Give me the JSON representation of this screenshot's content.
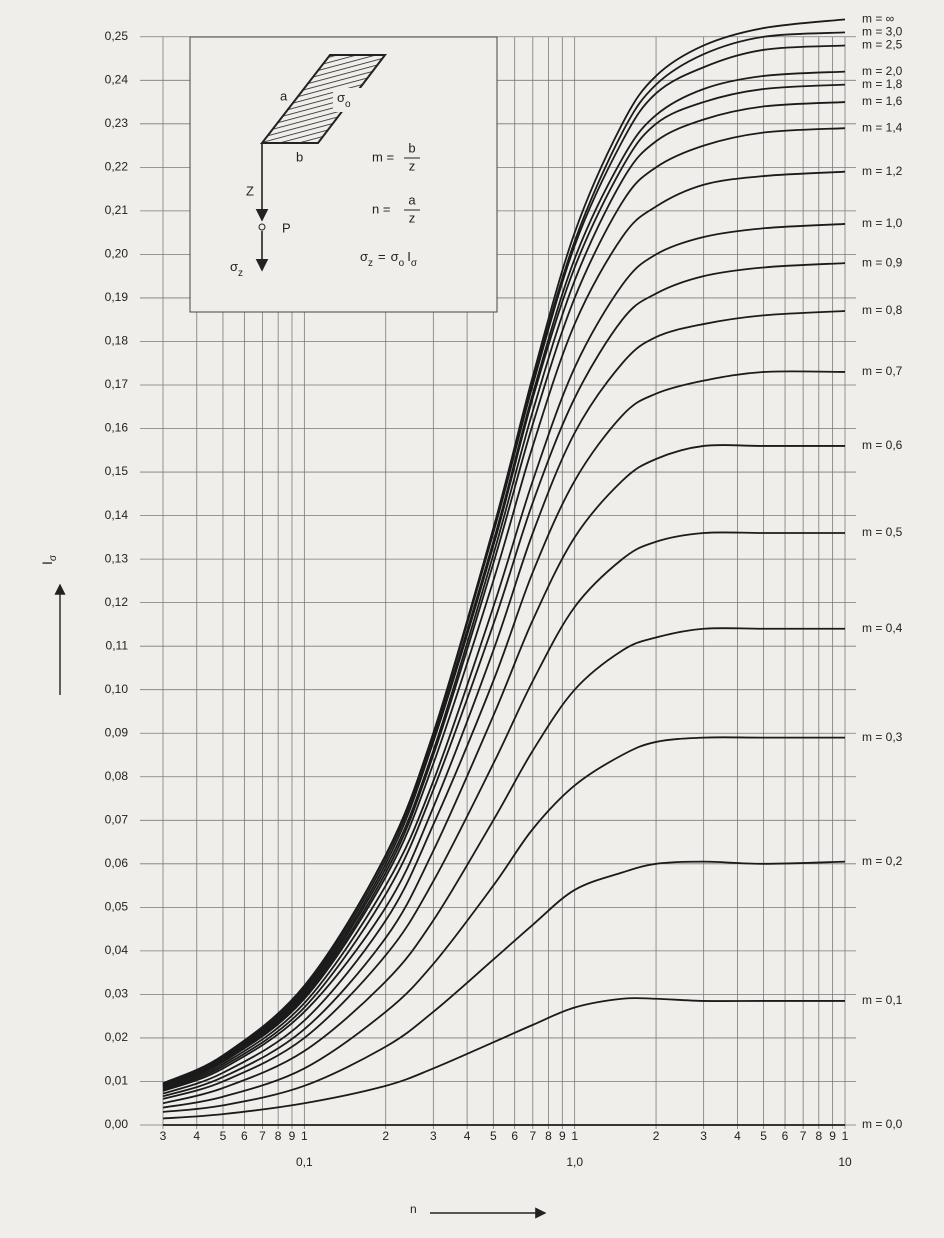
{
  "chart_data": {
    "type": "line",
    "x_label": "n",
    "y_label": [
      "I",
      "σ"
    ],
    "log_x": true,
    "grid": true,
    "color": "#1b1b1b",
    "x": [
      0.03,
      0.05,
      0.1,
      0.2,
      0.3,
      0.5,
      0.7,
      1.0,
      1.5,
      2,
      3,
      5,
      10
    ],
    "xlim": [
      0.03,
      10
    ],
    "ylim": [
      0,
      0.255
    ],
    "xticks": [
      {
        "value": 0.03,
        "label": "3"
      },
      {
        "value": 0.04,
        "label": "4"
      },
      {
        "value": 0.05,
        "label": "5"
      },
      {
        "value": 0.06,
        "label": "6"
      },
      {
        "value": 0.07,
        "label": "7"
      },
      {
        "value": 0.08,
        "label": "8"
      },
      {
        "value": 0.09,
        "label": "9"
      },
      {
        "value": 0.1,
        "label": "1"
      },
      {
        "value": 0.2,
        "label": "2"
      },
      {
        "value": 0.3,
        "label": "3"
      },
      {
        "value": 0.4,
        "label": "4"
      },
      {
        "value": 0.5,
        "label": "5"
      },
      {
        "value": 0.6,
        "label": "6"
      },
      {
        "value": 0.7,
        "label": "7"
      },
      {
        "value": 0.8,
        "label": "8"
      },
      {
        "value": 0.9,
        "label": "9"
      },
      {
        "value": 1,
        "label": "1"
      },
      {
        "value": 2,
        "label": "2"
      },
      {
        "value": 3,
        "label": "3"
      },
      {
        "value": 4,
        "label": "4"
      },
      {
        "value": 5,
        "label": "5"
      },
      {
        "value": 6,
        "label": "6"
      },
      {
        "value": 7,
        "label": "7"
      },
      {
        "value": 8,
        "label": "8"
      },
      {
        "value": 9,
        "label": "9"
      },
      {
        "value": 10,
        "label": "1"
      }
    ],
    "x_decade_labels": [
      {
        "value": 0.1,
        "label": "0,1"
      },
      {
        "value": 1,
        "label": "1,0"
      },
      10
    ],
    "yticks": [
      {
        "value": 0,
        "label": "0,00"
      },
      {
        "value": 0.01,
        "label": "0,01"
      },
      {
        "value": 0.02,
        "label": "0,02"
      },
      {
        "value": 0.03,
        "label": "0,03"
      },
      {
        "value": 0.04,
        "label": "0,04"
      },
      {
        "value": 0.05,
        "label": "0,05"
      },
      {
        "value": 0.06,
        "label": "0,06"
      },
      {
        "value": 0.07,
        "label": "0,07"
      },
      {
        "value": 0.08,
        "label": "0,08"
      },
      {
        "value": 0.09,
        "label": "0,09"
      },
      {
        "value": 0.1,
        "label": "0,10"
      },
      {
        "value": 0.11,
        "label": "0,11"
      },
      {
        "value": 0.12,
        "label": "0,12"
      },
      {
        "value": 0.13,
        "label": "0,13"
      },
      {
        "value": 0.14,
        "label": "0,14"
      },
      {
        "value": 0.15,
        "label": "0,15"
      },
      {
        "value": 0.16,
        "label": "0,16"
      },
      {
        "value": 0.17,
        "label": "0,17"
      },
      {
        "value": 0.18,
        "label": "0,18"
      },
      {
        "value": 0.19,
        "label": "0,19"
      },
      {
        "value": 0.2,
        "label": "0,20"
      },
      {
        "value": 0.21,
        "label": "0,21"
      },
      {
        "value": 0.22,
        "label": "0,22"
      },
      {
        "value": 0.23,
        "label": "0,23"
      },
      {
        "value": 0.24,
        "label": "0,24"
      },
      {
        "value": 0.25,
        "label": "0,25"
      }
    ],
    "series": [
      {
        "name": "m = ∞",
        "values": [
          0.0096,
          0.016,
          0.032,
          0.062,
          0.09,
          0.137,
          0.172,
          0.205,
          0.23,
          0.241,
          0.248,
          0.252,
          0.254
        ]
      },
      {
        "name": "m = 3,0",
        "values": [
          0.0095,
          0.0158,
          0.0316,
          0.062,
          0.09,
          0.137,
          0.171,
          0.203,
          0.228,
          0.239,
          0.246,
          0.25,
          0.251
        ]
      },
      {
        "name": "m = 2,5",
        "values": [
          0.0094,
          0.0157,
          0.0315,
          0.062,
          0.09,
          0.136,
          0.17,
          0.202,
          0.226,
          0.237,
          0.243,
          0.247,
          0.248
        ]
      },
      {
        "name": "m = 2,0",
        "values": [
          0.0093,
          0.0155,
          0.031,
          0.061,
          0.089,
          0.134,
          0.168,
          0.199,
          0.222,
          0.232,
          0.238,
          0.241,
          0.242
        ]
      },
      {
        "name": "m = 1,8",
        "values": [
          0.0092,
          0.0153,
          0.0305,
          0.06,
          0.088,
          0.133,
          0.167,
          0.197,
          0.22,
          0.23,
          0.235,
          0.238,
          0.239
        ]
      },
      {
        "name": "m = 1,6",
        "values": [
          0.009,
          0.015,
          0.03,
          0.059,
          0.086,
          0.131,
          0.164,
          0.194,
          0.217,
          0.226,
          0.231,
          0.234,
          0.235
        ]
      },
      {
        "name": "m = 1,4",
        "values": [
          0.0089,
          0.0148,
          0.0295,
          0.058,
          0.085,
          0.129,
          0.161,
          0.19,
          0.212,
          0.22,
          0.225,
          0.228,
          0.229
        ]
      },
      {
        "name": "m = 1,2",
        "values": [
          0.0087,
          0.0145,
          0.029,
          0.057,
          0.083,
          0.125,
          0.156,
          0.184,
          0.204,
          0.211,
          0.216,
          0.218,
          0.219
        ]
      },
      {
        "name": "m = 1,0",
        "values": [
          0.0084,
          0.014,
          0.028,
          0.055,
          0.079,
          0.119,
          0.148,
          0.174,
          0.193,
          0.2,
          0.204,
          0.206,
          0.207
        ]
      },
      {
        "name": "m = 0,9",
        "values": [
          0.0081,
          0.0135,
          0.027,
          0.053,
          0.077,
          0.115,
          0.143,
          0.167,
          0.185,
          0.191,
          0.195,
          0.197,
          0.198
        ]
      },
      {
        "name": "m = 0,8",
        "values": [
          0.0078,
          0.013,
          0.026,
          0.05,
          0.073,
          0.109,
          0.136,
          0.159,
          0.175,
          0.181,
          0.184,
          0.186,
          0.187
        ]
      },
      {
        "name": "m = 0,7",
        "values": [
          0.0072,
          0.012,
          0.024,
          0.047,
          0.069,
          0.102,
          0.127,
          0.148,
          0.163,
          0.168,
          0.171,
          0.173,
          0.173
        ]
      },
      {
        "name": "m = 0,6",
        "values": [
          0.0066,
          0.011,
          0.022,
          0.043,
          0.063,
          0.094,
          0.116,
          0.135,
          0.148,
          0.153,
          0.156,
          0.156,
          0.156
        ]
      },
      {
        "name": "m = 0,5",
        "values": [
          0.006,
          0.01,
          0.02,
          0.039,
          0.056,
          0.083,
          0.102,
          0.119,
          0.13,
          0.134,
          0.136,
          0.136,
          0.136
        ]
      },
      {
        "name": "m = 0,4",
        "values": [
          0.005,
          0.0085,
          0.017,
          0.033,
          0.047,
          0.07,
          0.086,
          0.1,
          0.109,
          0.112,
          0.114,
          0.114,
          0.114
        ]
      },
      {
        "name": "m = 0,3",
        "values": [
          0.004,
          0.0065,
          0.013,
          0.026,
          0.037,
          0.055,
          0.068,
          0.078,
          0.085,
          0.088,
          0.089,
          0.089,
          0.089
        ]
      },
      {
        "name": "m = 0,2",
        "values": [
          0.003,
          0.0045,
          0.009,
          0.018,
          0.026,
          0.038,
          0.046,
          0.054,
          0.058,
          0.06,
          0.0605,
          0.06,
          0.0605
        ]
      },
      {
        "name": "m = 0,1",
        "values": [
          0.0015,
          0.0025,
          0.005,
          0.009,
          0.013,
          0.019,
          0.023,
          0.027,
          0.029,
          0.029,
          0.0285,
          0.0285,
          0.0285
        ]
      },
      {
        "name": "m = 0,0",
        "values": [
          0,
          0,
          0,
          0,
          0,
          0,
          0,
          0,
          0,
          0,
          0,
          0,
          0
        ]
      }
    ],
    "inset": {
      "a": "a",
      "b": "b",
      "load": [
        "σ",
        "o"
      ],
      "depth": "Z",
      "point": "P",
      "stress": [
        "σ",
        "z"
      ],
      "m_formula": [
        "m =",
        "b",
        "z"
      ],
      "n_formula": [
        "n =",
        "a",
        "z"
      ],
      "stress_formula": [
        "σ",
        "z",
        "=",
        "σ",
        "o",
        "I",
        "σ"
      ]
    }
  }
}
